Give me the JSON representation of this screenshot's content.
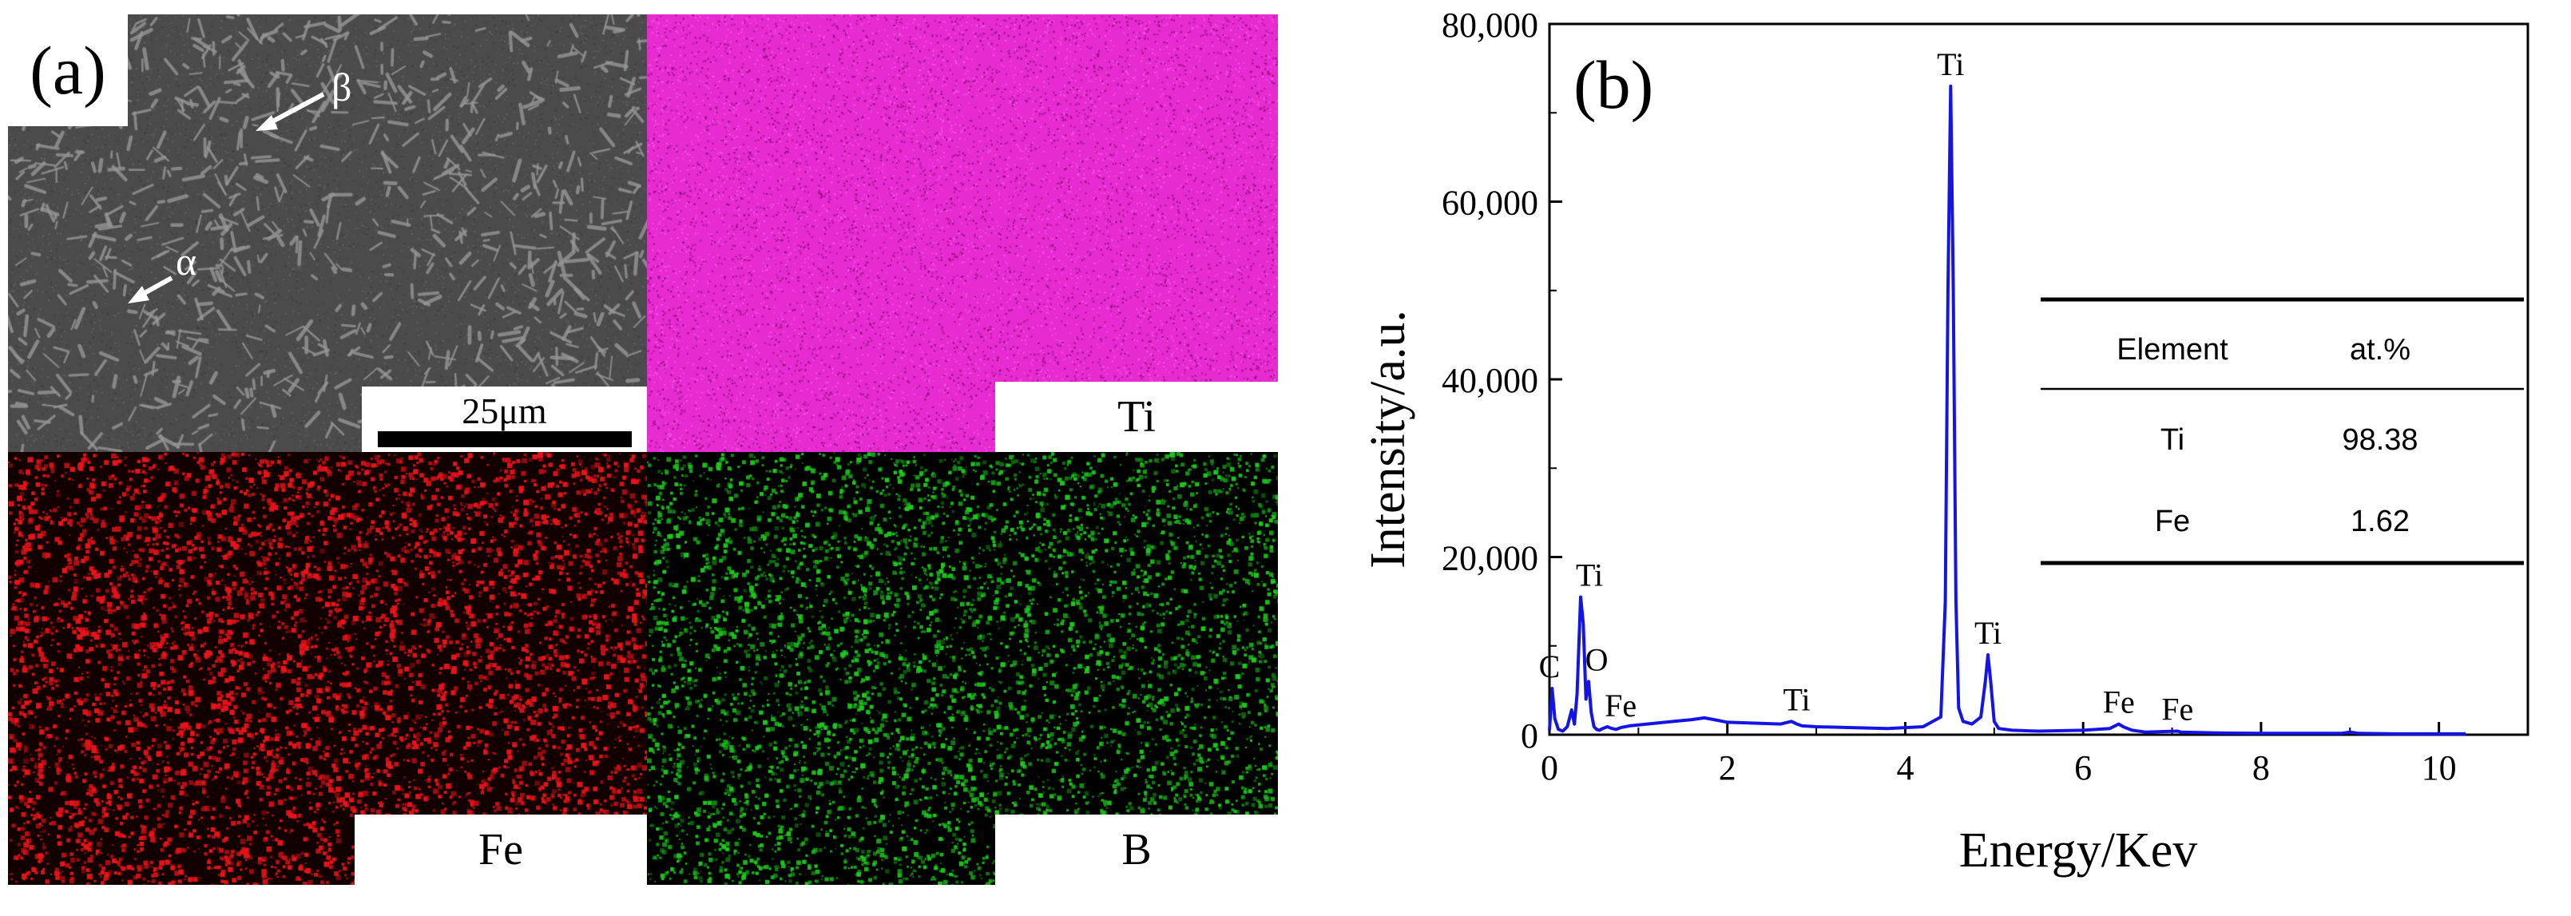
{
  "panel_a": {
    "letter": "(a)",
    "sem": {
      "phase_beta": "β",
      "phase_alpha": "α",
      "scale_bar": "25μm"
    },
    "maps": [
      {
        "element": "Ti",
        "color": "#e62bd0"
      },
      {
        "element": "Fe",
        "color": "#e8141a"
      },
      {
        "element": "B",
        "color": "#1ec81e"
      }
    ]
  },
  "chart_data": {
    "type": "line",
    "letter": "(b)",
    "xlabel": "Energy/Kev",
    "ylabel": "Intensity/a.u.",
    "xlim": [
      0,
      11
    ],
    "ylim": [
      0,
      80000
    ],
    "xticks": [
      "0",
      "2",
      "4",
      "6",
      "8",
      "10"
    ],
    "yticks": [
      "0",
      "20,000",
      "40,000",
      "60,000",
      "80,000"
    ],
    "series": [
      {
        "color": "#1414e6",
        "x": [
          0,
          0.03,
          0.06,
          0.1,
          0.15,
          0.2,
          0.25,
          0.28,
          0.31,
          0.35,
          0.38,
          0.41,
          0.44,
          0.47,
          0.5,
          0.53,
          0.56,
          0.6,
          0.65,
          0.7,
          0.75,
          0.8,
          0.9,
          1.0,
          1.2,
          1.4,
          1.6,
          1.74,
          1.85,
          2.0,
          2.3,
          2.6,
          2.72,
          2.78,
          2.84,
          3.0,
          3.4,
          3.8,
          4.2,
          4.4,
          4.45,
          4.48,
          4.51,
          4.54,
          4.57,
          4.6,
          4.65,
          4.75,
          4.85,
          4.9,
          4.93,
          4.96,
          5.0,
          5.05,
          5.2,
          5.5,
          6.0,
          6.3,
          6.4,
          6.45,
          6.55,
          6.7,
          7.06,
          7.1,
          7.5,
          8.0,
          8.9,
          9.0,
          9.1,
          9.5,
          10.0,
          10.3
        ],
        "y": [
          500,
          5200,
          1800,
          600,
          400,
          900,
          2800,
          1200,
          4500,
          15500,
          12500,
          4000,
          6000,
          2500,
          900,
          600,
          500,
          700,
          900,
          700,
          600,
          800,
          1000,
          1100,
          1300,
          1500,
          1700,
          1900,
          1700,
          1400,
          1300,
          1200,
          1500,
          1200,
          1000,
          900,
          800,
          700,
          900,
          2000,
          15000,
          50000,
          73000,
          50000,
          15000,
          3000,
          1500,
          1200,
          2000,
          6000,
          9000,
          6000,
          1500,
          700,
          500,
          400,
          500,
          700,
          1200,
          900,
          500,
          300,
          400,
          300,
          200,
          150,
          150,
          300,
          150,
          100,
          100,
          100
        ]
      }
    ],
    "peak_labels": [
      {
        "text": "Ti",
        "x": 4.51,
        "y": 73000
      },
      {
        "text": "Ti",
        "x": 0.45,
        "y": 15500
      },
      {
        "text": "Ti",
        "x": 4.93,
        "y": 9000
      },
      {
        "text": "Ti",
        "x": 2.78,
        "y": 1500
      },
      {
        "text": "C",
        "x": 0.0,
        "y": 5200
      },
      {
        "text": "O",
        "x": 0.53,
        "y": 6000
      },
      {
        "text": "Fe",
        "x": 0.8,
        "y": 800
      },
      {
        "text": "Fe",
        "x": 6.4,
        "y": 1200
      },
      {
        "text": "Fe",
        "x": 7.06,
        "y": 400
      }
    ],
    "table": {
      "headers": [
        "Element",
        "at.%"
      ],
      "rows": [
        [
          "Ti",
          "98.38"
        ],
        [
          "Fe",
          "1.62"
        ]
      ]
    }
  }
}
